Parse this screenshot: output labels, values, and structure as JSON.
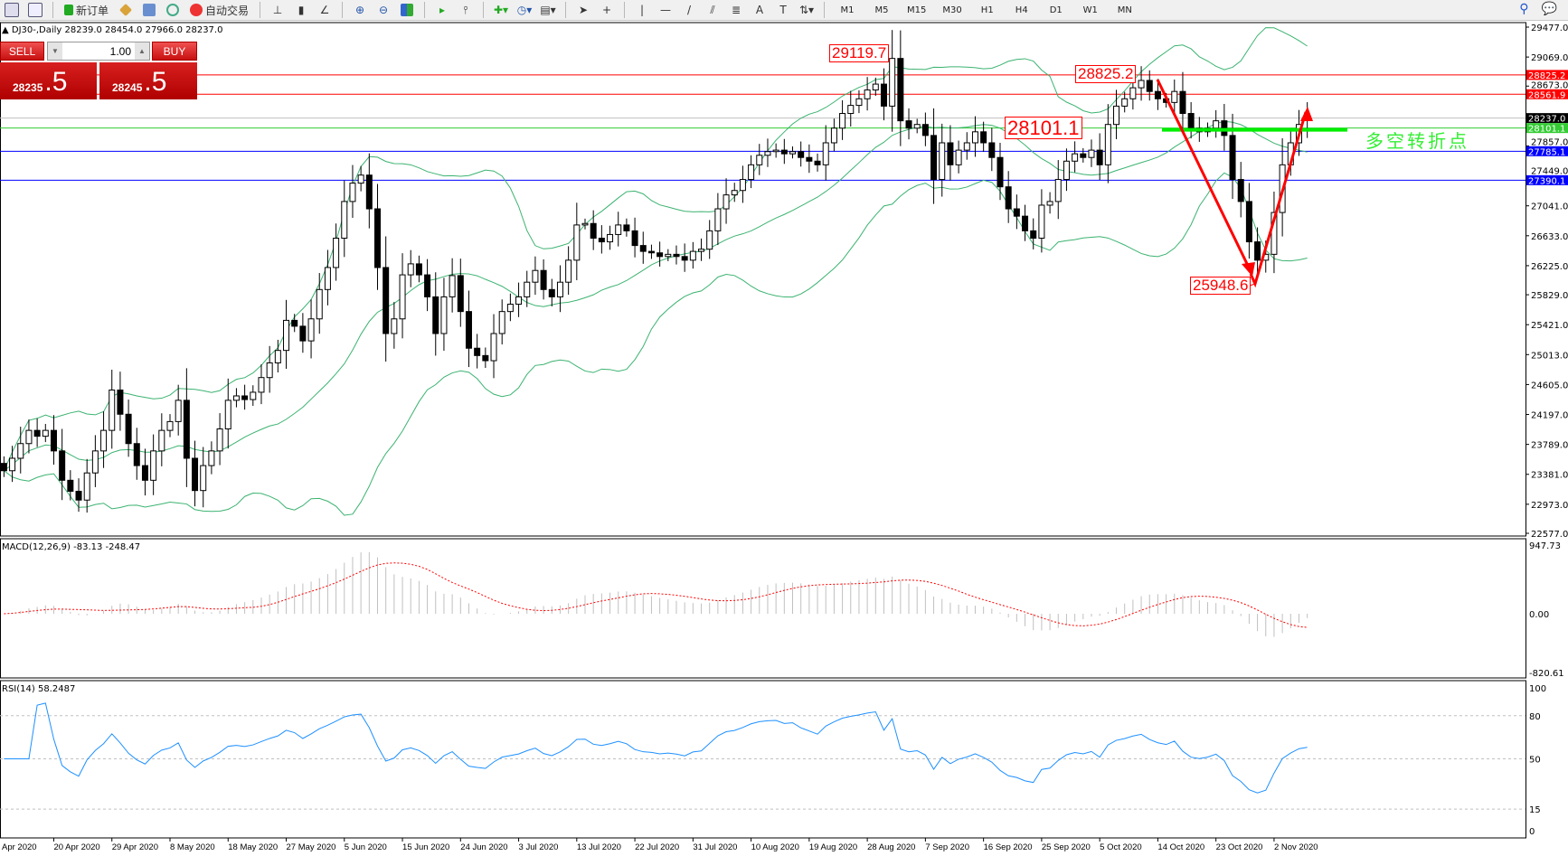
{
  "toolbar": {
    "new_order": "新订单",
    "auto_trading": "自动交易",
    "timeframes": [
      "M1",
      "M5",
      "M15",
      "M30",
      "H1",
      "H4",
      "D1",
      "W1",
      "MN"
    ],
    "icons": [
      "new-chart-icon",
      "profiles-icon",
      "new-order-icon",
      "market-watch-icon",
      "navigator-icon",
      "terminal-icon",
      "signals-icon",
      "auto-trading-icon",
      "bar-chart-icon",
      "candlestick-icon",
      "line-chart-icon",
      "zoom-in-icon",
      "zoom-out-icon",
      "tile-windows-icon",
      "auto-scroll-icon",
      "chart-shift-icon",
      "indicators-icon",
      "periods-icon",
      "templates-icon",
      "cursor-icon",
      "crosshair-icon",
      "vertical-line-icon",
      "horizontal-line-icon",
      "trendline-icon",
      "equidistant-channel-icon",
      "fibonacci-icon",
      "text-icon",
      "text-label-icon",
      "arrows-icon",
      "search-icon",
      "chat-icon"
    ]
  },
  "chart": {
    "title": "DJ30-,Daily  28239.0 28454.0 27966.0 28237.0",
    "symbol": "DJ30-",
    "period": "Daily"
  },
  "trade_panel": {
    "sell_label": "SELL",
    "buy_label": "BUY",
    "lot": "1.00",
    "sell_price_main": "28235",
    "sell_price_big": ".5",
    "buy_price_main": "28245",
    "buy_price_big": ".5"
  },
  "annotations": {
    "high_label": "29119.7",
    "resist_label": "28825.2",
    "pivot_label": "28101.1",
    "low_label": "25948.6",
    "turn_text": "多空转折点"
  },
  "colors": {
    "resistance": "#ff0000",
    "support": "#0000ff",
    "pivot": "#33cc33",
    "bollinger": "#3cb371",
    "macd_signal": "#ff0000",
    "macd_hist": "#c0c0c0",
    "rsi": "#1e90ff"
  },
  "chart_data": {
    "type": "candlestick",
    "closes": [
      23430,
      23600,
      23800,
      23980,
      23900,
      23980,
      23700,
      23300,
      23150,
      23030,
      23400,
      23700,
      23980,
      24530,
      24200,
      23800,
      23500,
      23300,
      23700,
      23980,
      24100,
      24390,
      23600,
      23160,
      23500,
      23700,
      24000,
      24390,
      24450,
      24400,
      24500,
      24700,
      24900,
      25070,
      25480,
      25400,
      25200,
      25500,
      25900,
      26200,
      26600,
      27100,
      27350,
      27460,
      27000,
      26200,
      25300,
      25500,
      26100,
      26250,
      26100,
      25800,
      25300,
      25800,
      26090,
      25600,
      25100,
      25000,
      24930,
      25300,
      25600,
      25700,
      25800,
      26000,
      26160,
      25900,
      25800,
      26000,
      26300,
      26780,
      26800,
      26600,
      26550,
      26650,
      26780,
      26700,
      26500,
      26420,
      26400,
      26350,
      26380,
      26350,
      26300,
      26420,
      26450,
      26700,
      27000,
      27190,
      27250,
      27400,
      27600,
      27730,
      27780,
      27800,
      27750,
      27780,
      27700,
      27650,
      27600,
      27900,
      28100,
      28300,
      28410,
      28500,
      28620,
      28700,
      28400,
      29050,
      28200,
      28100,
      28150,
      28000,
      27400,
      27900,
      27600,
      27800,
      27900,
      28050,
      27900,
      27700,
      27300,
      27000,
      26900,
      26700,
      26600,
      27050,
      27100,
      27400,
      27650,
      27750,
      27700,
      27800,
      27600,
      28150,
      28400,
      28500,
      28650,
      28750,
      28600,
      28500,
      28450,
      28600,
      28300,
      28100,
      28050,
      28100,
      28200,
      28000,
      27400,
      27100,
      26550,
      26300,
      26380,
      26950,
      27600,
      27900,
      28150,
      28237
    ],
    "last_bar": {
      "open": 28239.0,
      "high": 28454.0,
      "low": 27966.0,
      "close": 28237.0
    },
    "price_axis": {
      "min": 22577.0,
      "max": 29477.0,
      "ticks": [
        "29477.0",
        "29069.0",
        "28673.0",
        "27857.0",
        "27449.0",
        "27041.0",
        "26633.0",
        "26225.0",
        "25829.0",
        "25421.0",
        "25013.0",
        "24605.0",
        "24197.0",
        "23789.0",
        "23381.0",
        "22973.0",
        "22577.0"
      ]
    },
    "date_labels": [
      "Apr 2020",
      "20 Apr 2020",
      "29 Apr 2020",
      "8 May 2020",
      "18 May 2020",
      "27 May 2020",
      "5 Jun 2020",
      "15 Jun 2020",
      "24 Jun 2020",
      "3 Jul 2020",
      "13 Jul 2020",
      "22 Jul 2020",
      "31 Jul 2020",
      "10 Aug 2020",
      "19 Aug 2020",
      "28 Aug 2020",
      "7 Sep 2020",
      "16 Sep 2020",
      "25 Sep 2020",
      "5 Oct 2020",
      "14 Oct 2020",
      "23 Oct 2020",
      "2 Nov 2020"
    ],
    "horizontal_lines": [
      {
        "price": 28825.2,
        "label": "28825.2",
        "color": "#ff0000"
      },
      {
        "price": 28561.9,
        "label": "28561.9",
        "color": "#ff0000"
      },
      {
        "price": 28237.0,
        "label": "28237.0",
        "color": "#000000"
      },
      {
        "price": 28101.1,
        "label": "28101.1",
        "color": "#33cc33"
      },
      {
        "price": 27785.1,
        "label": "27785.1",
        "color": "#0000ff"
      },
      {
        "price": 27390.1,
        "label": "27390.1",
        "color": "#0000ff"
      }
    ],
    "bollinger": {
      "period": 20,
      "deviation": 2
    },
    "macd": {
      "label": "MACD(12,26,9) -83.13 -248.47",
      "axis": [
        "947.73",
        "0.00",
        "-820.61"
      ],
      "max": 947.73,
      "min": -820.61
    },
    "rsi": {
      "label": "RSI(14) 58.2487",
      "period": 14,
      "levels": [
        80,
        50,
        15
      ],
      "axis": [
        "100",
        "80",
        "50",
        "15",
        "0"
      ]
    }
  }
}
